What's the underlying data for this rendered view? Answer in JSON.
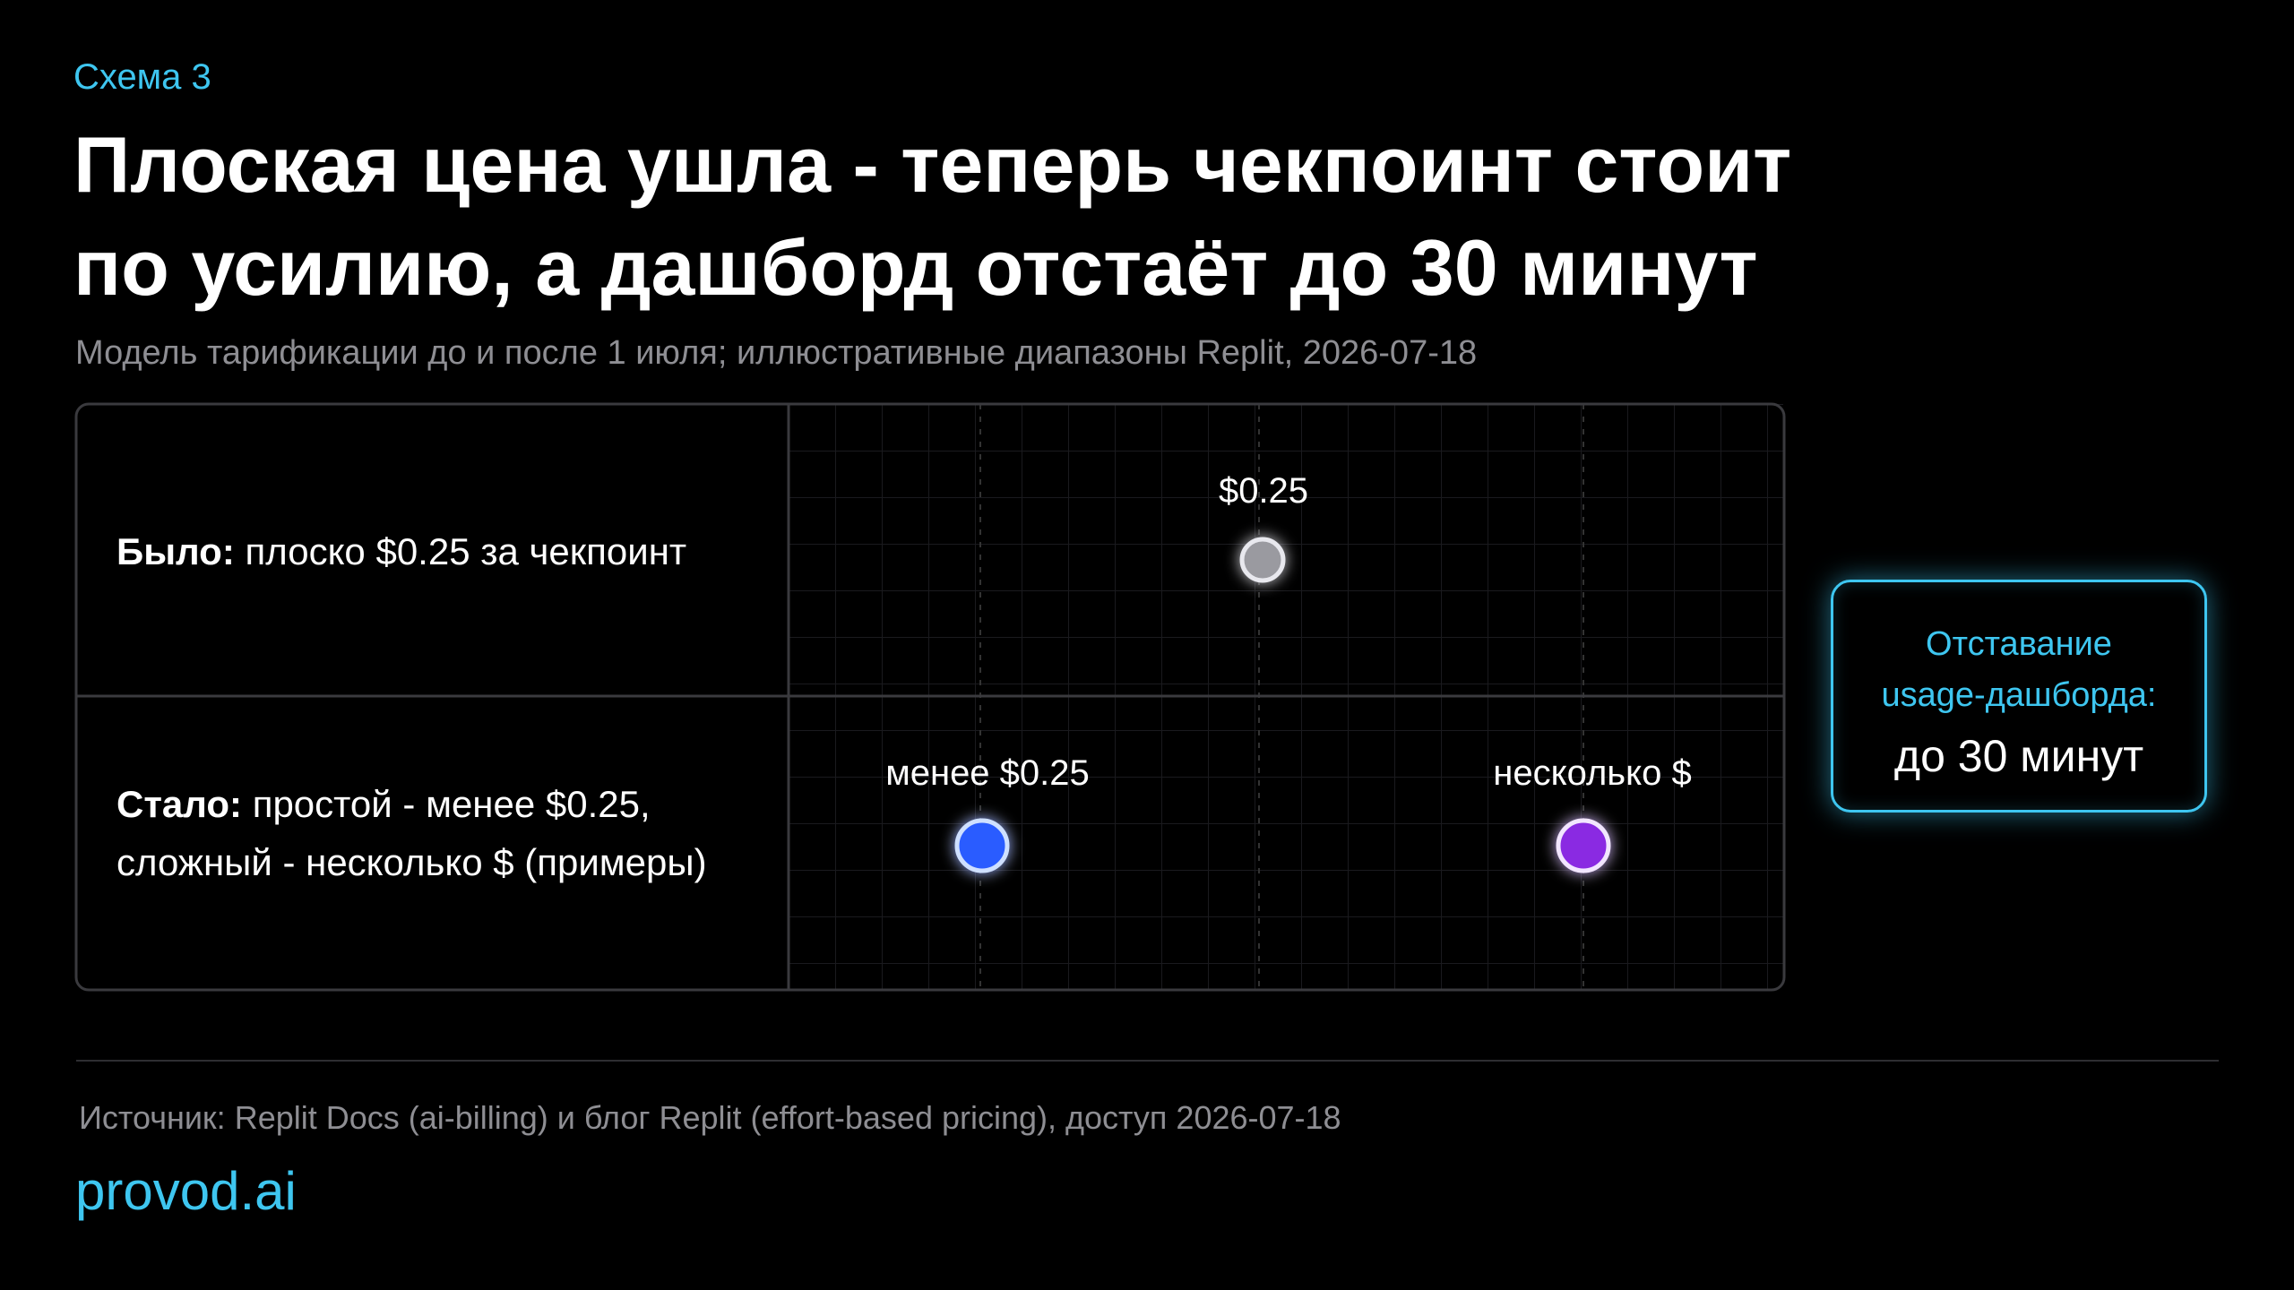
{
  "header": {
    "kicker": "Схема 3",
    "title_lines": [
      "Плоская цена ушла - теперь чекпоинт стоит",
      "по усилию, а дашборд отстаёт до 30 минут"
    ],
    "subtitle": "Модель тарификации до и после 1 июля; иллюстративные диапазоны Replit, 2026-07-18"
  },
  "rows": [
    {
      "lead": "Было:",
      "lines": [
        "плоско $0.25 за чекпоинт"
      ],
      "markers": [
        "$0.25"
      ]
    },
    {
      "lead": "Стало:",
      "lines": [
        "простой - менее $0.25,",
        "сложный - несколько $ (примеры)"
      ],
      "markers": [
        "менее $0.25",
        "несколько $"
      ]
    }
  ],
  "callout": {
    "lines": [
      "Отставание",
      "usage-дашборда:"
    ],
    "value": "до 30 минут"
  },
  "footer": {
    "source": "Источник:  Replit Docs (ai-billing) и блог Replit (effort-based pricing), доступ 2026-07-18",
    "brand": "provod.ai"
  }
}
